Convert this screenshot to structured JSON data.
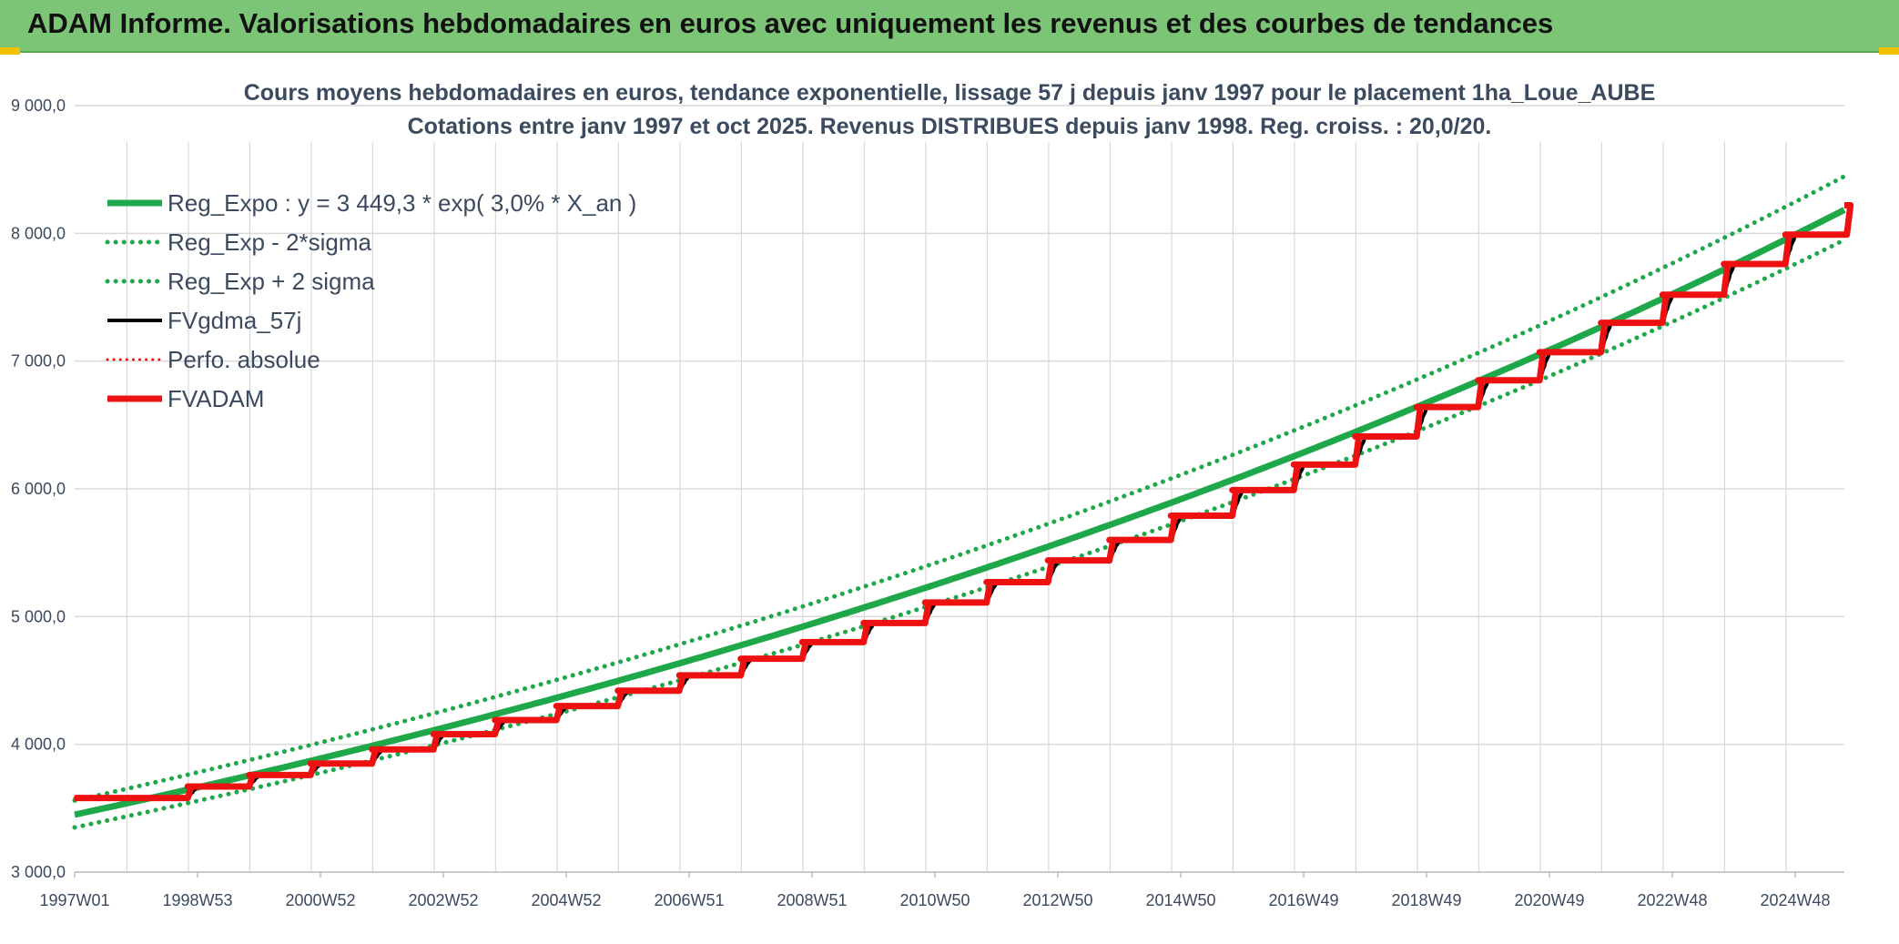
{
  "header": {
    "title": "ADAM Informe. Valorisations hebdomadaires en euros avec uniquement les revenus et des courbes de tendances"
  },
  "colors": {
    "banner": "#7cc576",
    "green": "#1fa84a",
    "black": "#000000",
    "red": "#ee1111",
    "grid": "#d9d9d9",
    "text": "#3b4a5e"
  },
  "chart_data": {
    "type": "line",
    "title": "Cours moyens hebdomadaires en euros, tendance exponentielle, lissage 57 j depuis janv 1997 pour le placement 1ha_Loue_AUBE",
    "subtitle": "Cotations entre janv 1997 et oct 2025. Revenus DISTRIBUES depuis janv 1998. Reg. croiss. : 20,0/20.",
    "xlabel": "",
    "ylabel": "",
    "ylim": [
      3000,
      9000
    ],
    "yticks": [
      "3 000,0",
      "4 000,0",
      "5 000,0",
      "6 000,0",
      "7 000,0",
      "8 000,0",
      "9 000,0"
    ],
    "xlim": [
      1997.0,
      2025.8
    ],
    "x_tick_labels": [
      "1997W01",
      "1998W53",
      "2000W52",
      "2002W52",
      "2004W52",
      "2006W51",
      "2008W51",
      "2010W50",
      "2012W50",
      "2014W50",
      "2016W49",
      "2018W49",
      "2020W49",
      "2022W48",
      "2024W48"
    ],
    "grid": true,
    "legend_position": "top-left",
    "series": [
      {
        "name": "Reg_Expo : y = 3 449,3 * exp( 3,0% *  X_an )",
        "style": "solid",
        "color": "#1fa84a",
        "kind": "expo",
        "a": 3449.3,
        "r": 0.03
      },
      {
        "name": "Reg_Exp - 2*sigma",
        "style": "dotted",
        "color": "#1fa84a",
        "kind": "expo",
        "a": 3350.0,
        "r": 0.03
      },
      {
        "name": "Reg_Exp + 2 sigma",
        "style": "dotted",
        "color": "#1fa84a",
        "kind": "expo",
        "a": 3560.0,
        "r": 0.03
      },
      {
        "name": "FVgdma_57j",
        "style": "solid",
        "color": "#000000",
        "kind": "smooth"
      },
      {
        "name": "Perfo. absolue",
        "style": "dotted",
        "color": "#ee1111",
        "kind": "step"
      },
      {
        "name": "FVADAM",
        "style": "solid",
        "color": "#ee1111",
        "kind": "step"
      }
    ],
    "fvadam_steps": [
      {
        "year": 1997,
        "value": 3580
      },
      {
        "year": 1998,
        "value": 3670
      },
      {
        "year": 1999,
        "value": 3760
      },
      {
        "year": 2000,
        "value": 3850
      },
      {
        "year": 2001,
        "value": 3960
      },
      {
        "year": 2002,
        "value": 4080
      },
      {
        "year": 2003,
        "value": 4190
      },
      {
        "year": 2004,
        "value": 4300
      },
      {
        "year": 2005,
        "value": 4420
      },
      {
        "year": 2006,
        "value": 4540
      },
      {
        "year": 2007,
        "value": 4670
      },
      {
        "year": 2008,
        "value": 4800
      },
      {
        "year": 2009,
        "value": 4950
      },
      {
        "year": 2010,
        "value": 5110
      },
      {
        "year": 2011,
        "value": 5270
      },
      {
        "year": 2012,
        "value": 5440
      },
      {
        "year": 2013,
        "value": 5600
      },
      {
        "year": 2014,
        "value": 5790
      },
      {
        "year": 2015,
        "value": 5990
      },
      {
        "year": 2016,
        "value": 6190
      },
      {
        "year": 2017,
        "value": 6410
      },
      {
        "year": 2018,
        "value": 6640
      },
      {
        "year": 2019,
        "value": 6850
      },
      {
        "year": 2020,
        "value": 7070
      },
      {
        "year": 2021,
        "value": 7300
      },
      {
        "year": 2022,
        "value": 7520
      },
      {
        "year": 2023,
        "value": 7760
      },
      {
        "year": 2024,
        "value": 7990
      },
      {
        "year": 2025,
        "value": 8220
      }
    ]
  }
}
